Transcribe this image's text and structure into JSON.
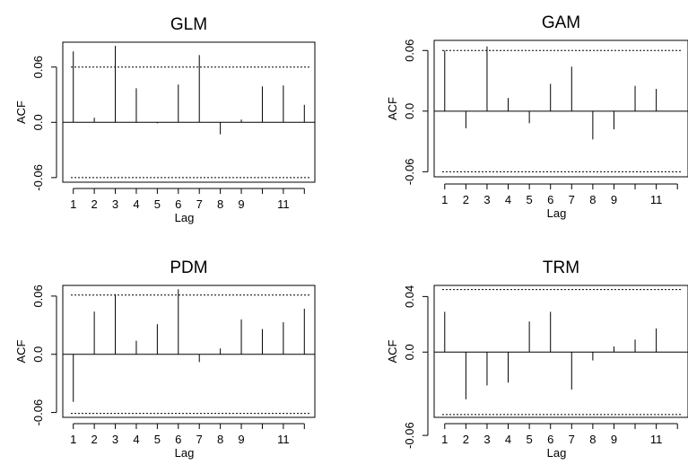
{
  "chart_data": [
    {
      "type": "bar",
      "title": "GLM",
      "xlabel": "Lag",
      "ylabel": "ACF",
      "x": [
        1,
        2,
        3,
        4,
        5,
        6,
        7,
        8,
        9,
        10,
        11,
        12
      ],
      "values": [
        0.077,
        0.005,
        0.083,
        0.037,
        -0.001,
        0.041,
        0.073,
        -0.013,
        0.003,
        0.039,
        0.04,
        0.019
      ],
      "xticks": [
        1,
        2,
        3,
        4,
        5,
        6,
        7,
        8,
        9,
        11
      ],
      "yticks": [
        -0.06,
        0.0,
        0.06
      ],
      "ytick_labels": [
        "-0.06",
        "0.0",
        "0.06"
      ],
      "conf": 0.06,
      "xlim": [
        0.5,
        12.5
      ],
      "ylim": [
        -0.065,
        0.087
      ]
    },
    {
      "type": "bar",
      "title": "GAM",
      "xlabel": "Lag",
      "ylabel": "ACF",
      "x": [
        1,
        2,
        3,
        4,
        5,
        6,
        7,
        8,
        9,
        10,
        11,
        12
      ],
      "values": [
        0.06,
        -0.017,
        0.064,
        0.013,
        -0.012,
        0.027,
        0.044,
        -0.028,
        -0.018,
        0.025,
        0.022,
        0.0
      ],
      "xticks": [
        1,
        2,
        3,
        4,
        5,
        6,
        7,
        8,
        9,
        11
      ],
      "yticks": [
        -0.06,
        0.0,
        0.06
      ],
      "ytick_labels": [
        "-0.06",
        "0.0",
        "0.06"
      ],
      "conf": 0.06,
      "xlim": [
        0.5,
        12.5
      ],
      "ylim": [
        -0.065,
        0.07
      ]
    },
    {
      "type": "bar",
      "title": "PDM",
      "xlabel": "Lag",
      "ylabel": "ACF",
      "x": [
        1,
        2,
        3,
        4,
        5,
        6,
        7,
        8,
        9,
        10,
        11,
        12
      ],
      "values": [
        -0.049,
        0.044,
        0.062,
        0.014,
        0.031,
        0.067,
        -0.008,
        0.006,
        0.036,
        0.026,
        0.033,
        0.047
      ],
      "xticks": [
        1,
        2,
        3,
        4,
        5,
        6,
        7,
        8,
        9,
        11
      ],
      "yticks": [
        -0.06,
        0.0,
        0.06
      ],
      "ytick_labels": [
        "-0.06",
        "0.0",
        "0.06"
      ],
      "conf": 0.061,
      "xlim": [
        0.5,
        12.5
      ],
      "ylim": [
        -0.065,
        0.071
      ]
    },
    {
      "type": "bar",
      "title": "TRM",
      "xlabel": "Lag",
      "ylabel": "ACF",
      "x": [
        1,
        2,
        3,
        4,
        5,
        6,
        7,
        8,
        9,
        10,
        11,
        12
      ],
      "values": [
        0.029,
        -0.034,
        -0.024,
        -0.022,
        0.022,
        0.029,
        -0.027,
        -0.006,
        0.004,
        0.009,
        0.017,
        0.0
      ],
      "xticks": [
        1,
        2,
        3,
        4,
        5,
        6,
        7,
        8,
        9,
        11
      ],
      "yticks": [
        -0.06,
        0.0,
        0.04
      ],
      "ytick_labels": [
        "-0.06",
        "0.0",
        "0.04"
      ],
      "conf": 0.045,
      "xlim": [
        0.5,
        12.5
      ],
      "ylim": [
        -0.047,
        0.048
      ]
    }
  ]
}
